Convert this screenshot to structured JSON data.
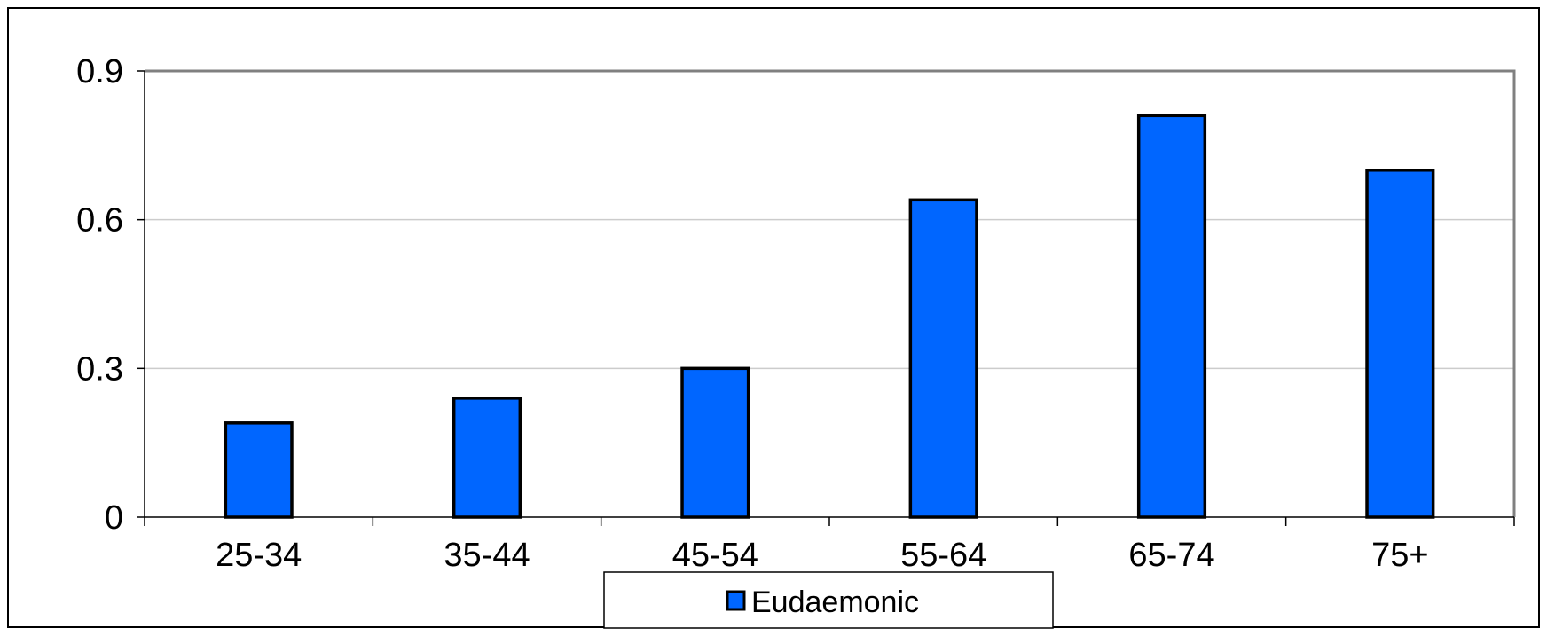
{
  "chart_data": {
    "type": "bar",
    "categories": [
      "25-34",
      "35-44",
      "45-54",
      "55-64",
      "65-74",
      "75+"
    ],
    "series": [
      {
        "name": "Eudaemonic",
        "values": [
          0.19,
          0.24,
          0.3,
          0.64,
          0.81,
          0.7
        ],
        "color": "#0066ff"
      }
    ],
    "ylim": [
      0,
      0.9
    ],
    "yticks": [
      0,
      0.3,
      0.6,
      0.9
    ],
    "ytick_labels": [
      "0",
      "0.3",
      "0.6",
      "0.9"
    ],
    "grid": true,
    "legend_position": "bottom",
    "colors": {
      "bar_fill": "#0066ff",
      "bar_stroke": "#000000",
      "gridline": "#cccccc",
      "plot_border": "#808080"
    }
  }
}
